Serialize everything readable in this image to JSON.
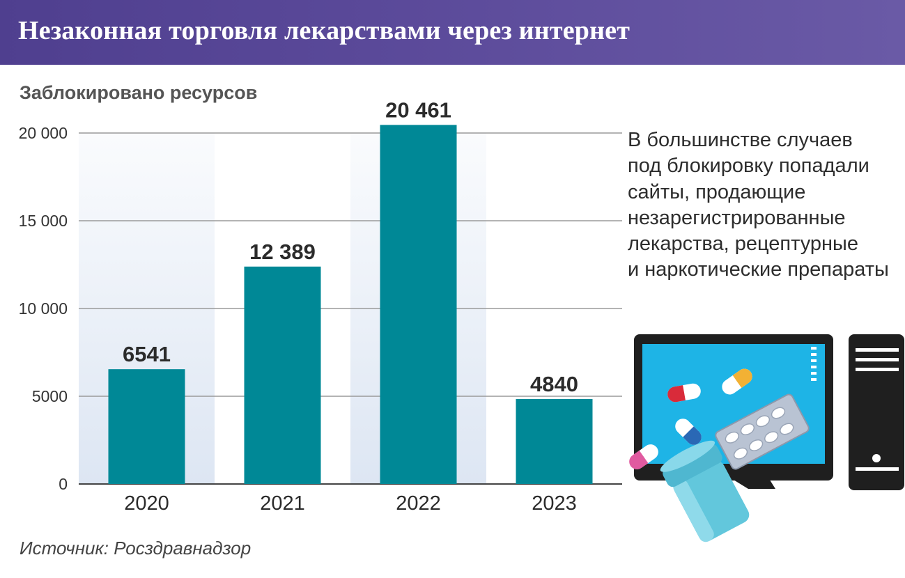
{
  "header": {
    "title": "Незаконная торговля лекарствами через интернет"
  },
  "note": {
    "lines": [
      "В большинстве случаев",
      "под блокировку попадали",
      "сайты, продающие",
      "незарегистрированные",
      "лекарства, рецептурные",
      "и наркотические препараты"
    ]
  },
  "footer": {
    "source": "Источник: Росздравнадзор"
  },
  "illustration": {
    "items": [
      "monitor-icon",
      "pill-capsule-icon",
      "blister-pack-icon",
      "pill-bottle-icon",
      "system-unit-icon"
    ]
  },
  "colors": {
    "header_bg": "#5a4a9b",
    "bar": "#008896",
    "column_shade": "#dde6f3",
    "grid": "#9a9a9a",
    "screen": "#1eb4e6"
  },
  "chart_data": {
    "type": "bar",
    "title": "Заблокировано ресурсов",
    "xlabel": "",
    "ylabel": "",
    "categories": [
      "2020",
      "2021",
      "2022",
      "2023"
    ],
    "values": [
      6541,
      12389,
      20461,
      4840
    ],
    "value_labels": [
      "6541",
      "12 389",
      "20 461",
      "4840"
    ],
    "ylim": [
      0,
      20000
    ],
    "yticks": [
      0,
      5000,
      10000,
      15000,
      20000
    ],
    "ytick_labels": [
      "0",
      "5000",
      "10 000",
      "15 000",
      "20 000"
    ],
    "grid": true,
    "legend": "none"
  }
}
